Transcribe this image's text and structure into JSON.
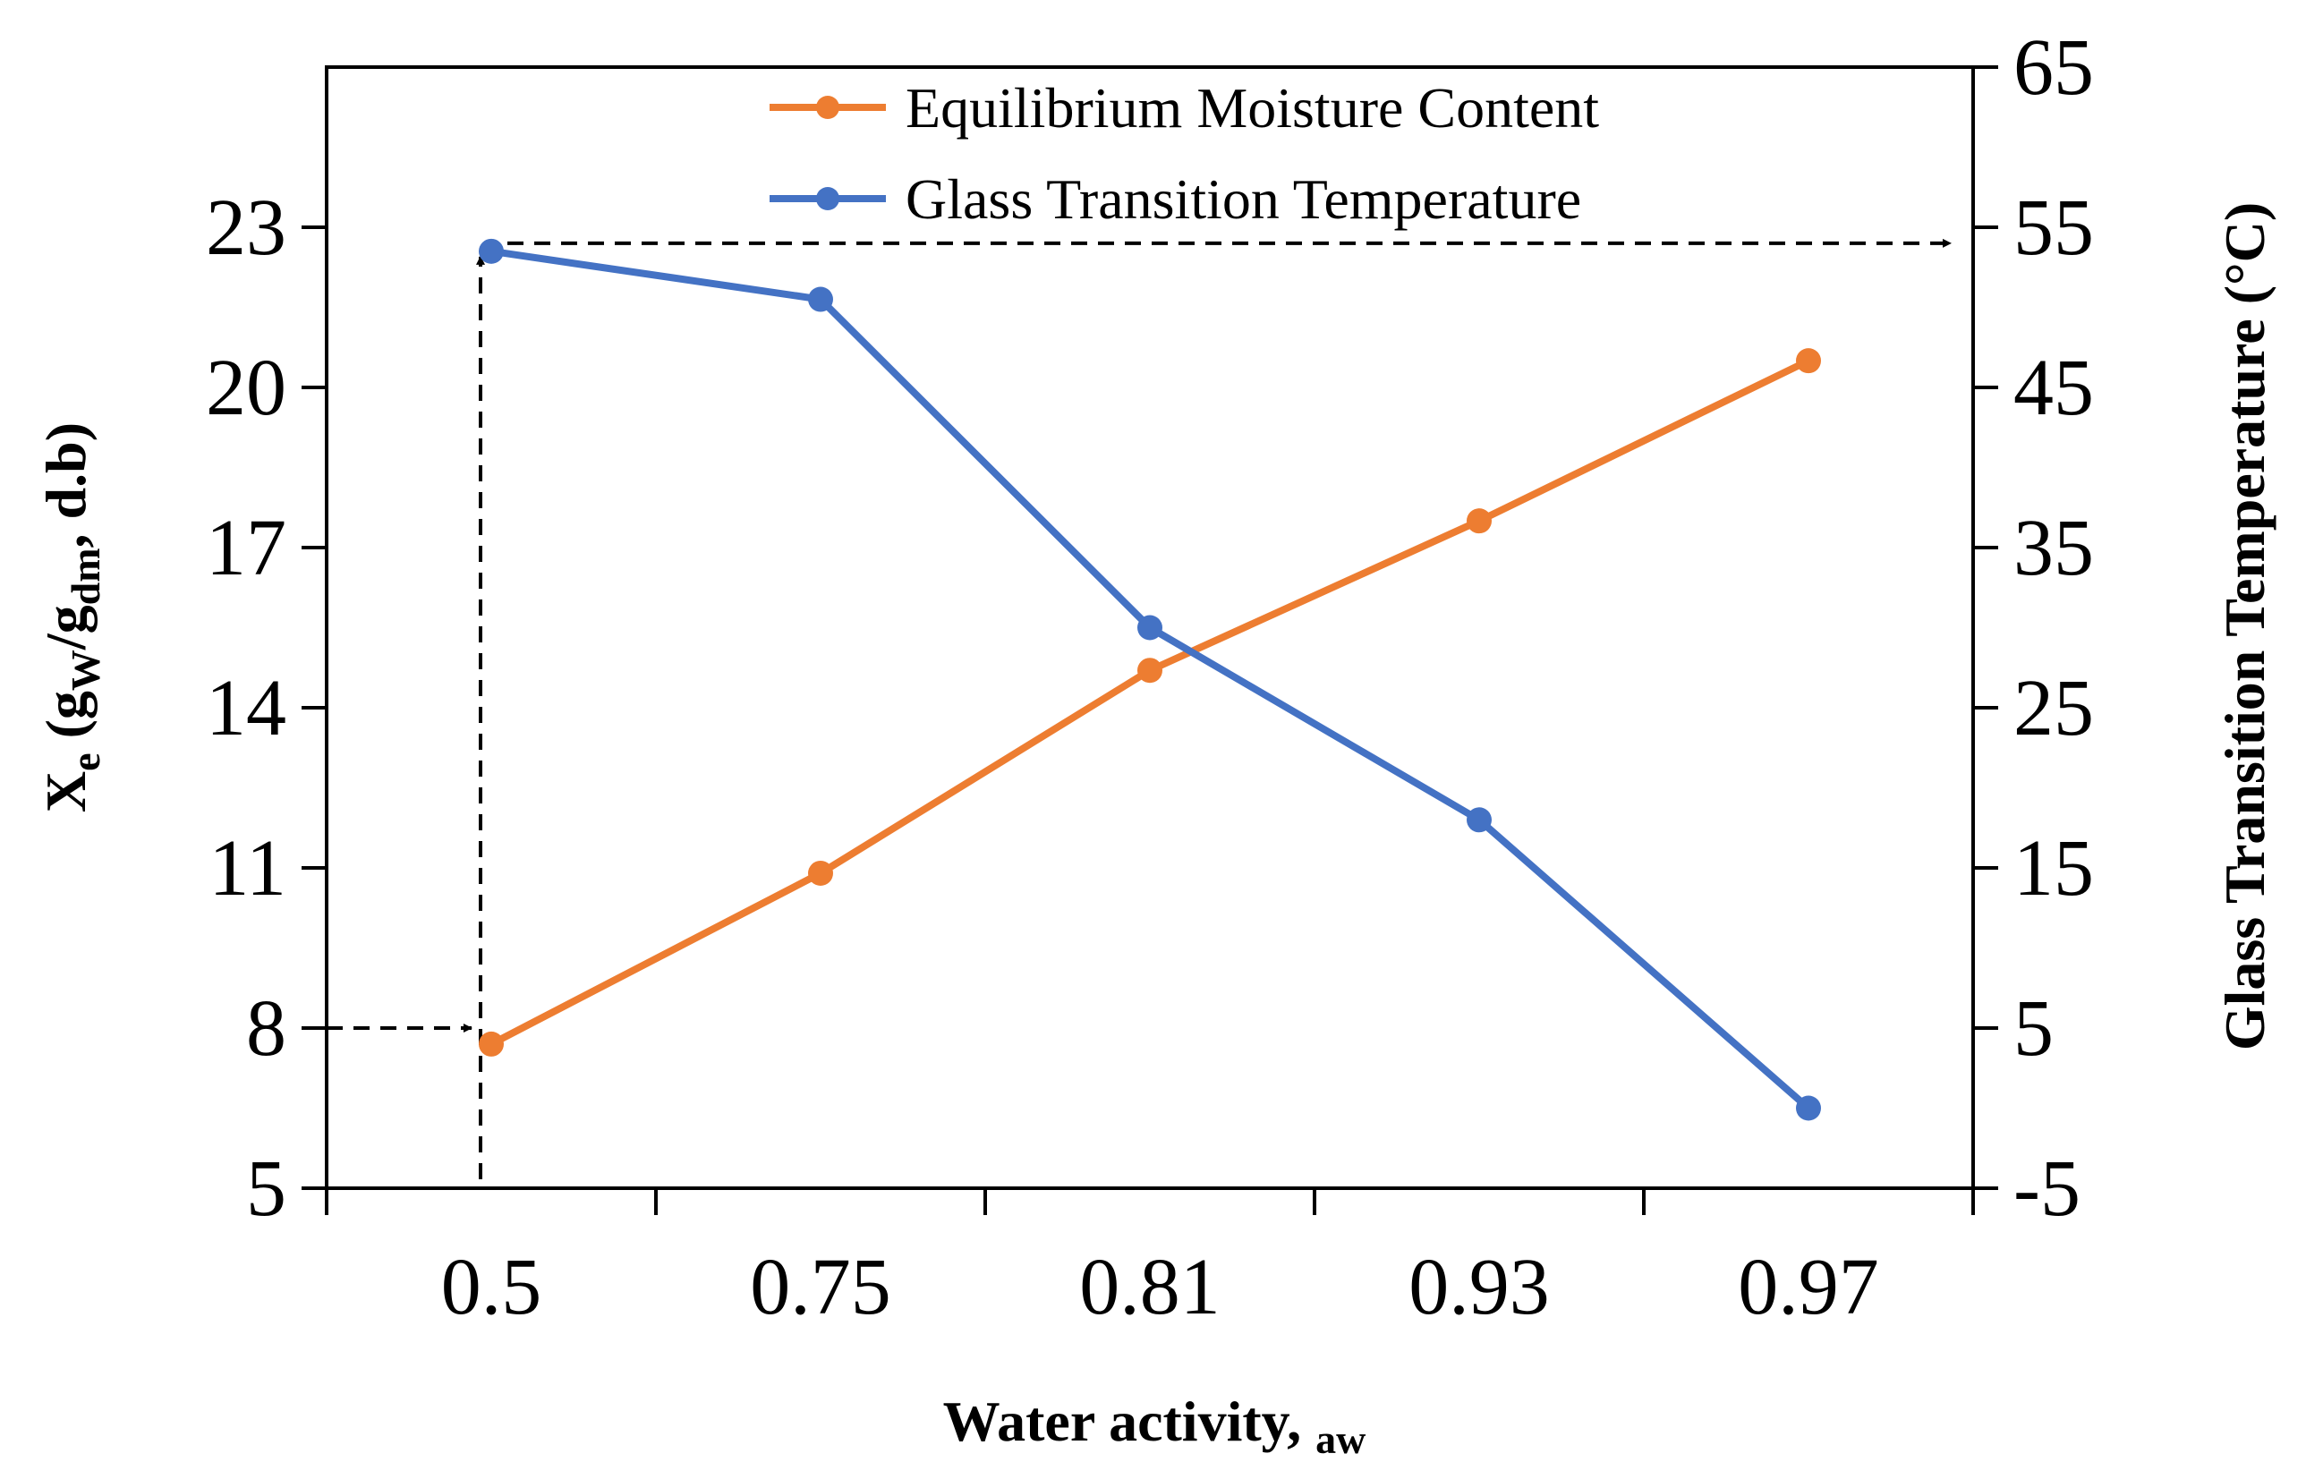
{
  "chart_data": {
    "type": "line",
    "categories": [
      "0.5",
      "0.75",
      "0.81",
      "0.93",
      "0.97"
    ],
    "series": [
      {
        "name": "Equilibrium Moisture Content",
        "axis": "left",
        "color": "#ED7D31",
        "values": [
          7.7,
          10.9,
          14.7,
          17.5,
          20.5
        ]
      },
      {
        "name": "Glass Transition Temperature",
        "axis": "right",
        "color": "#4472C4",
        "values": [
          53.5,
          50.5,
          30,
          18,
          0
        ]
      }
    ],
    "left_axis": {
      "ylim": [
        5,
        26
      ],
      "ticks": [
        "5",
        "8",
        "11",
        "14",
        "17",
        "20",
        "23"
      ],
      "label": {
        "main": "X",
        "sub_e": "e",
        "open": " (g",
        "sub_w": "W",
        "slash": "/g",
        "sub_dm": "dm",
        "close": ", d.b)"
      }
    },
    "right_axis": {
      "ylim": [
        -5,
        65
      ],
      "ticks": [
        "-5",
        "5",
        "15",
        "25",
        "35",
        "45",
        "55",
        "65"
      ],
      "label": "Glass Transition Temperature (°C)"
    },
    "x_axis": {
      "label_main": "Water activity, ",
      "label_sub": "aw"
    },
    "legend": {
      "position": "top-center"
    },
    "annotations": [
      {
        "type": "dashed-arrow",
        "from_left_value": 8,
        "to_category": "0.5",
        "direction": "right"
      },
      {
        "type": "dashed-arrow",
        "category": "0.5",
        "direction": "up",
        "to_series": "Glass Transition Temperature"
      },
      {
        "type": "dashed-arrow",
        "from_category": "0.5",
        "at_right_value": 54,
        "direction": "right-to-axis"
      }
    ]
  }
}
